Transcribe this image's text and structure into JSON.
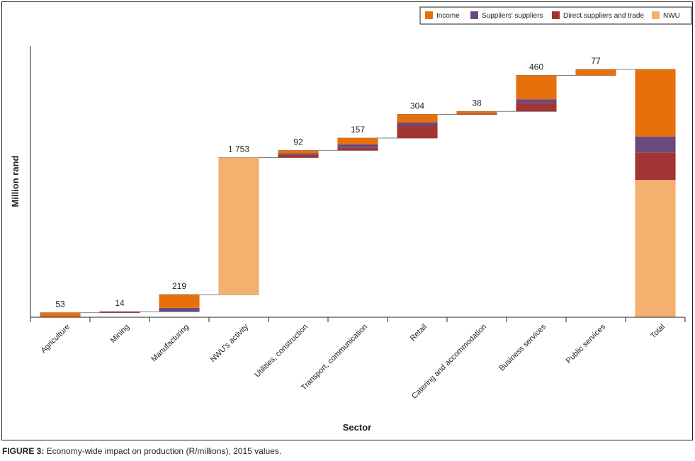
{
  "chart_data": {
    "type": "bar",
    "subtype": "stacked-waterfall",
    "title": "",
    "xlabel": "Sector",
    "ylabel": "Million rand",
    "ylim": [
      0,
      3500
    ],
    "grid": false,
    "legend_position": "top-right",
    "categories": [
      "Agriculture",
      "Mining",
      "Manufacturing",
      "NWU's activity",
      "Utilities, construction",
      "Transport, communication",
      "Retail",
      "Catering and accommodation",
      "Business services",
      "Public services",
      "Total"
    ],
    "totals_labels": [
      "53",
      "14",
      "219",
      "1 753",
      "92",
      "157",
      "304",
      "38",
      "460",
      "77",
      ""
    ],
    "totals": [
      53,
      14,
      219,
      1753,
      92,
      157,
      304,
      38,
      460,
      77,
      3167
    ],
    "series": [
      {
        "name": "Income",
        "color": "#E8700C",
        "values": [
          53,
          0,
          172,
          0,
          36,
          80,
          105,
          30,
          305,
          77,
          858
        ]
      },
      {
        "name": "Suppliers' suppliers",
        "color": "#6A4A7E",
        "values": [
          0,
          0,
          47,
          0,
          18,
          45,
          45,
          0,
          50,
          0,
          205
        ]
      },
      {
        "name": "Direct suppliers and trade",
        "color": "#A23533",
        "values": [
          0,
          14,
          0,
          0,
          38,
          32,
          154,
          8,
          105,
          0,
          351
        ]
      },
      {
        "name": "NWU",
        "color": "#F3B06F",
        "values": [
          0,
          0,
          0,
          1753,
          0,
          0,
          0,
          0,
          0,
          0,
          1753
        ]
      }
    ]
  },
  "caption": {
    "label": "FIGURE 3:",
    "text": " Economy-wide impact on production (R/millions), 2015 values."
  }
}
